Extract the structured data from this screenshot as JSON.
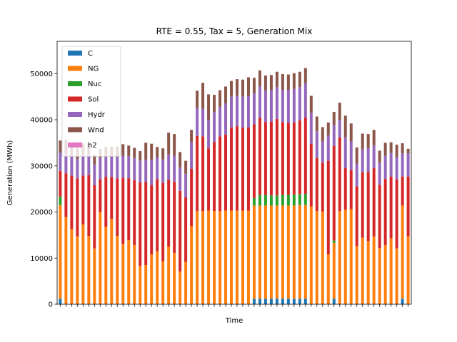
{
  "chart_data": {
    "type": "bar",
    "stacked": true,
    "title": "RTE = 0.55, Tax = 5, Generation Mix",
    "xlabel": "Time",
    "ylabel": "Generation (MWh)",
    "ylim": [
      0,
      57000
    ],
    "yticks": [
      0,
      10000,
      20000,
      30000,
      40000,
      50000
    ],
    "ytick_labels": [
      "0",
      "10000",
      "20000",
      "30000",
      "40000",
      "50000"
    ],
    "legend_position": "top-left",
    "grid": false,
    "series": [
      {
        "name": "C",
        "color": "#1f77b4",
        "values": [
          1200,
          0,
          0,
          0,
          0,
          0,
          0,
          0,
          0,
          0,
          0,
          0,
          0,
          0,
          0,
          0,
          0,
          0,
          0,
          0,
          0,
          0,
          0,
          0,
          0,
          0,
          0,
          0,
          0,
          0,
          0,
          0,
          0,
          0,
          1200,
          1200,
          1200,
          1200,
          1200,
          1200,
          1200,
          1200,
          1200,
          1200,
          0,
          0,
          0,
          0,
          1200,
          0,
          0,
          0,
          0,
          0,
          0,
          0,
          0,
          0,
          0,
          0,
          1200,
          0
        ]
      },
      {
        "name": "NG",
        "color": "#ff7f0e",
        "values": [
          20300,
          18900,
          16300,
          14700,
          17300,
          14800,
          12100,
          20000,
          16800,
          18500,
          14800,
          13100,
          13900,
          12800,
          8300,
          8500,
          10800,
          11500,
          9300,
          12500,
          11100,
          7100,
          9200,
          16900,
          20200,
          20200,
          20300,
          20200,
          20200,
          20300,
          20300,
          20300,
          20300,
          20300,
          20200,
          20200,
          20200,
          20200,
          20200,
          20200,
          20200,
          20200,
          20300,
          20300,
          21200,
          20200,
          20100,
          10800,
          12100,
          20200,
          20500,
          20600,
          12600,
          14400,
          13700,
          14700,
          12200,
          12800,
          14300,
          12100,
          20200,
          14700
        ]
      },
      {
        "name": "Nuc",
        "color": "#2ca02c",
        "values": [
          1800,
          0,
          0,
          0,
          0,
          0,
          0,
          0,
          0,
          0,
          0,
          0,
          0,
          0,
          0,
          0,
          0,
          0,
          0,
          0,
          0,
          0,
          0,
          0,
          0,
          0,
          0,
          0,
          0,
          0,
          0,
          0,
          0,
          0,
          1600,
          2300,
          2300,
          2200,
          2200,
          2300,
          2300,
          2400,
          2400,
          2400,
          0,
          0,
          0,
          0,
          500,
          0,
          0,
          0,
          0,
          0,
          0,
          0,
          0,
          0,
          0,
          0,
          0,
          0
        ]
      },
      {
        "name": "Sol",
        "color": "#d62728",
        "values": [
          5600,
          9500,
          11600,
          12600,
          10600,
          13200,
          13700,
          7100,
          10800,
          9100,
          12500,
          14300,
          13400,
          14100,
          18100,
          18000,
          15000,
          15600,
          17000,
          14500,
          15500,
          17500,
          14000,
          12500,
          16300,
          16200,
          13500,
          15000,
          16200,
          16500,
          18000,
          18300,
          18000,
          18000,
          16000,
          16700,
          15800,
          16000,
          16600,
          15800,
          15600,
          15600,
          16000,
          16600,
          13600,
          11500,
          10600,
          20300,
          20500,
          16000,
          9000,
          8500,
          13000,
          14200,
          15000,
          14800,
          13700,
          14400,
          13400,
          15000,
          6300,
          13000
        ]
      },
      {
        "name": "Hydr",
        "color": "#9467bd",
        "values": [
          4000,
          4300,
          4300,
          4200,
          4500,
          4500,
          4500,
          4600,
          4500,
          4500,
          4800,
          4800,
          4800,
          4800,
          4700,
          4800,
          5500,
          4700,
          5100,
          5500,
          5600,
          5000,
          5100,
          5800,
          6000,
          6000,
          6200,
          6500,
          6400,
          6700,
          6700,
          6600,
          6700,
          6800,
          6700,
          6800,
          6800,
          6800,
          6900,
          7000,
          7200,
          7300,
          7200,
          7400,
          6700,
          5800,
          4600,
          5500,
          4600,
          3700,
          6700,
          6200,
          4900,
          5000,
          5100,
          4900,
          4800,
          5000,
          5100,
          4800,
          5000,
          5000
        ]
      },
      {
        "name": "Wnd",
        "color": "#8c564b",
        "values": [
          2600,
          2900,
          2600,
          2300,
          2500,
          2400,
          2100,
          2000,
          2000,
          2100,
          2100,
          2500,
          2300,
          2200,
          2100,
          3700,
          3500,
          2300,
          2400,
          4700,
          4700,
          3400,
          2800,
          2600,
          3800,
          5600,
          5500,
          3700,
          3600,
          3700,
          3400,
          3600,
          3700,
          4100,
          3400,
          3500,
          3300,
          3300,
          3300,
          3400,
          3300,
          3400,
          3300,
          3300,
          3700,
          3200,
          3100,
          2800,
          2800,
          3800,
          4700,
          3900,
          3500,
          3400,
          3100,
          3400,
          2600,
          2800,
          2300,
          2700,
          2200,
          1000
        ]
      },
      {
        "name": "h2",
        "color": "#e377c2",
        "values": [
          0,
          0,
          0,
          0,
          0,
          0,
          0,
          0,
          0,
          0,
          0,
          0,
          0,
          0,
          0,
          0,
          0,
          0,
          0,
          0,
          0,
          0,
          0,
          0,
          0,
          0,
          0,
          0,
          0,
          0,
          0,
          0,
          0,
          0,
          0,
          0,
          0,
          0,
          0,
          0,
          0,
          0,
          0,
          0,
          0,
          0,
          0,
          0,
          0,
          0,
          0,
          0,
          0,
          0,
          0,
          0,
          0,
          0,
          0,
          0,
          0,
          0
        ]
      }
    ]
  }
}
